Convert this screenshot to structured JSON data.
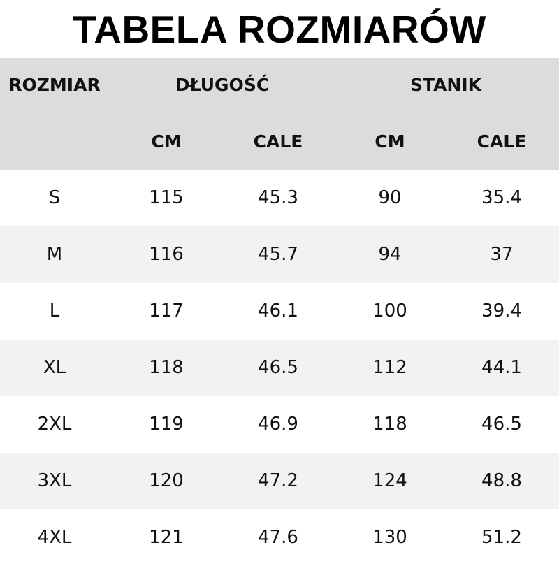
{
  "title": "TABELA ROZMIARÓW",
  "header": {
    "size": "ROZMIAR",
    "length": "DŁUGOŚĆ",
    "bust": "STANIK",
    "length_cm": "CM",
    "length_in": "CALE",
    "bust_cm": "CM",
    "bust_in": "CALE"
  },
  "rows": [
    {
      "size": "S",
      "length_cm": "115",
      "length_in": "45.3",
      "bust_cm": "90",
      "bust_in": "35.4"
    },
    {
      "size": "M",
      "length_cm": "116",
      "length_in": "45.7",
      "bust_cm": "94",
      "bust_in": "37"
    },
    {
      "size": "L",
      "length_cm": "117",
      "length_in": "46.1",
      "bust_cm": "100",
      "bust_in": "39.4"
    },
    {
      "size": "XL",
      "length_cm": "118",
      "length_in": "46.5",
      "bust_cm": "112",
      "bust_in": "44.1"
    },
    {
      "size": "2XL",
      "length_cm": "119",
      "length_in": "46.9",
      "bust_cm": "118",
      "bust_in": "46.5"
    },
    {
      "size": "3XL",
      "length_cm": "120",
      "length_in": "47.2",
      "bust_cm": "124",
      "bust_in": "48.8"
    },
    {
      "size": "4XL",
      "length_cm": "121",
      "length_in": "47.6",
      "bust_cm": "130",
      "bust_in": "51.2"
    }
  ],
  "colors": {
    "header_bg": "#dcdcdc",
    "alt_row_bg": "#f2f2f2"
  }
}
